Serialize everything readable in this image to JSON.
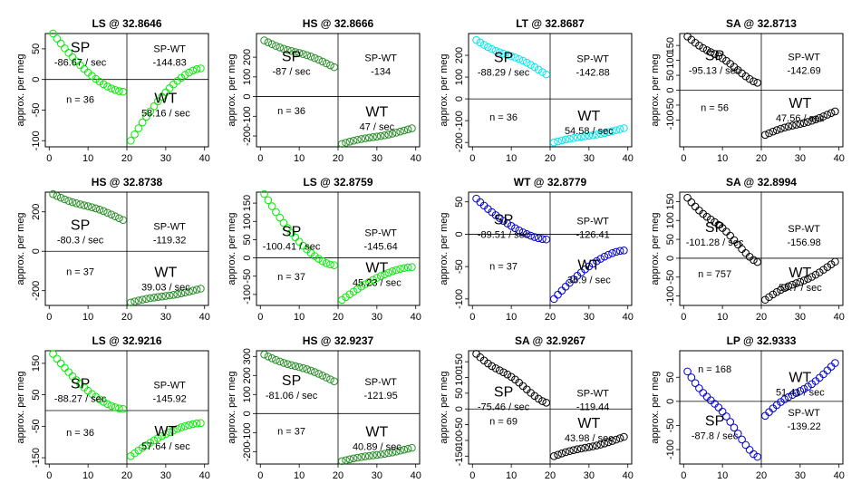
{
  "figure": {
    "ylabel": "approx. per meg",
    "xticks": [
      "0",
      "10",
      "20",
      "30",
      "40"
    ],
    "sp_label": "SP",
    "wt_label": "WT",
    "diff_label": "SP-WT"
  },
  "chart_data": [
    {
      "type": "scatter",
      "title": "LS @ 32.8646",
      "ylim": [
        -110,
        75
      ],
      "yticks": [
        "-100",
        "-50",
        "0",
        "50"
      ],
      "color": "#00ee00",
      "sp": [
        75,
        -20
      ],
      "wt": [
        -100,
        18
      ],
      "sp_rate": "-86.67 / sec",
      "wt_rate": "58.16 / sec",
      "diff": "-144.83",
      "n": "n = 36",
      "sp_pos": [
        8,
        45
      ],
      "wt_pos": [
        30,
        -38
      ],
      "n_pos": [
        8,
        -38
      ],
      "diff_pos": [
        31,
        45
      ],
      "shape": "bowl"
    },
    {
      "type": "scatter",
      "title": "HS @ 32.8666",
      "ylim": [
        -255,
        320
      ],
      "yticks": [
        "-200",
        "-100",
        "0",
        "100",
        "200"
      ],
      "color": "#228b22",
      "sp": [
        285,
        130
      ],
      "wt": [
        -240,
        -150
      ],
      "sp_rate": "-87 / sec",
      "wt_rate": "47 / sec",
      "diff": "-134",
      "n": "n = 36",
      "sp_pos": [
        8,
        180
      ],
      "wt_pos": [
        30,
        -100
      ],
      "n_pos": [
        8,
        -90
      ],
      "diff_pos": [
        31,
        180
      ],
      "shape": "gentle"
    },
    {
      "type": "scatter",
      "title": "LT @ 32.8687",
      "ylim": [
        -220,
        300
      ],
      "yticks": [
        "-200",
        "-100",
        "0",
        "100",
        "200"
      ],
      "color": "#00e5ee",
      "sp": [
        270,
        90
      ],
      "wt": [
        -200,
        -125
      ],
      "sp_rate": "-88.29 / sec",
      "wt_rate": "54.58 / sec",
      "diff": "-142.88",
      "n": "n = 36",
      "sp_pos": [
        8,
        170
      ],
      "wt_pos": [
        30,
        -100
      ],
      "n_pos": [
        8,
        -100
      ],
      "diff_pos": [
        31,
        170
      ],
      "shape": "gentle"
    },
    {
      "type": "scatter",
      "title": "SA @ 32.8713",
      "ylim": [
        -190,
        190
      ],
      "yticks": [
        "-100",
        "-50",
        "0",
        "50",
        "100",
        "150"
      ],
      "color": "#000000",
      "sp": [
        180,
        25
      ],
      "wt": [
        -150,
        -60
      ],
      "sp_rate": "-95.13 / sec",
      "wt_rate": "47.56 / sec",
      "diff": "-142.69",
      "n": "n = 56",
      "sp_pos": [
        8,
        100
      ],
      "wt_pos": [
        30,
        -60
      ],
      "n_pos": [
        8,
        -70
      ],
      "diff_pos": [
        31,
        100
      ],
      "shape": "linear"
    },
    {
      "type": "scatter",
      "title": "HS @ 32.8738",
      "ylim": [
        -275,
        300
      ],
      "yticks": [
        "-200",
        "0",
        "200"
      ],
      "color": "#228b22",
      "sp": [
        290,
        140
      ],
      "wt": [
        -260,
        -180
      ],
      "sp_rate": "-80.3 / sec",
      "wt_rate": "39.03 / sec",
      "diff": "-119.32",
      "n": "n = 37",
      "sp_pos": [
        8,
        110
      ],
      "wt_pos": [
        30,
        -130
      ],
      "n_pos": [
        8,
        -120
      ],
      "diff_pos": [
        31,
        110
      ],
      "shape": "gentle"
    },
    {
      "type": "scatter",
      "title": "LS @ 32.8759",
      "ylim": [
        -130,
        180
      ],
      "yticks": [
        "-100",
        "-50",
        "0",
        "50",
        "100",
        "150"
      ],
      "color": "#00ee00",
      "sp": [
        175,
        -20
      ],
      "wt": [
        -115,
        -25
      ],
      "sp_rate": "-100.41 / sec",
      "wt_rate": "45.23 / sec",
      "diff": "-145.64",
      "n": "n = 37",
      "sp_pos": [
        8,
        60
      ],
      "wt_pos": [
        30,
        -40
      ],
      "n_pos": [
        8,
        -60
      ],
      "diff_pos": [
        31,
        60
      ],
      "shape": "bowl"
    },
    {
      "type": "scatter",
      "title": "WT @ 32.8779",
      "ylim": [
        -110,
        65
      ],
      "yticks": [
        "-100",
        "-50",
        "0",
        "50"
      ],
      "color": "#0000cd",
      "sp": [
        55,
        -8
      ],
      "wt": [
        -100,
        -25
      ],
      "sp_rate": "-89.51 / sec",
      "wt_rate": "36.9 / sec",
      "diff": "-126.41",
      "n": "n = 37",
      "sp_pos": [
        8,
        15
      ],
      "wt_pos": [
        30,
        -55
      ],
      "n_pos": [
        8,
        -55
      ],
      "diff_pos": [
        31,
        15
      ],
      "shape": "bowl"
    },
    {
      "type": "scatter",
      "title": "SA @ 32.8994",
      "ylim": [
        -125,
        175
      ],
      "yticks": [
        "-100",
        "-50",
        "0",
        "50",
        "100",
        "150"
      ],
      "color": "#000000",
      "sp": [
        160,
        -10
      ],
      "wt": [
        -110,
        5
      ],
      "sp_rate": "-101.28 / sec",
      "wt_rate": "55.7 / sec",
      "diff": "-156.98",
      "n": "n = 757",
      "sp_pos": [
        8,
        70
      ],
      "wt_pos": [
        30,
        -50
      ],
      "n_pos": [
        8,
        -50
      ],
      "diff_pos": [
        31,
        70
      ],
      "shape": "linear"
    },
    {
      "type": "scatter",
      "title": "LS @ 32.9216",
      "ylim": [
        -170,
        190
      ],
      "yticks": [
        "-150",
        "-50",
        "50",
        "150"
      ],
      "color": "#00ee00",
      "sp": [
        180,
        5
      ],
      "wt": [
        -145,
        -40
      ],
      "sp_rate": "-88.27 / sec",
      "wt_rate": "57.64 / sec",
      "diff": "-145.92",
      "n": "n = 36",
      "sp_pos": [
        8,
        70
      ],
      "wt_pos": [
        30,
        -80
      ],
      "n_pos": [
        8,
        -80
      ],
      "diff_pos": [
        31,
        70
      ],
      "shape": "bowl"
    },
    {
      "type": "scatter",
      "title": "HS @ 32.9237",
      "ylim": [
        -265,
        330
      ],
      "yticks": [
        "-200",
        "-100",
        "0",
        "100",
        "200",
        "300"
      ],
      "color": "#228b22",
      "sp": [
        310,
        150
      ],
      "wt": [
        -250,
        -170
      ],
      "sp_rate": "-81.06 / sec",
      "wt_rate": "40.89 / sec",
      "diff": "-121.95",
      "n": "n = 37",
      "sp_pos": [
        8,
        150
      ],
      "wt_pos": [
        30,
        -120
      ],
      "n_pos": [
        8,
        -110
      ],
      "diff_pos": [
        31,
        150
      ],
      "shape": "gentle"
    },
    {
      "type": "scatter",
      "title": "SA @ 32.9267",
      "ylim": [
        -175,
        185
      ],
      "yticks": [
        "-150",
        "-100",
        "-50",
        "0",
        "50",
        "100",
        "150"
      ],
      "color": "#000000",
      "sp": [
        175,
        20
      ],
      "wt": [
        -150,
        -80
      ],
      "sp_rate": "-75.46 / sec",
      "wt_rate": "43.98 / sec",
      "diff": "-119.44",
      "n": "n = 69",
      "sp_pos": [
        8,
        40
      ],
      "wt_pos": [
        30,
        -60
      ],
      "n_pos": [
        8,
        -50
      ],
      "diff_pos": [
        31,
        40
      ],
      "shape": "linear"
    },
    {
      "type": "scatter",
      "title": "LP @ 32.9333",
      "ylim": [
        -130,
        105
      ],
      "yticks": [
        "-100",
        "-50",
        "0",
        "50"
      ],
      "color": "#0000cd",
      "sp": [
        62,
        -115
      ],
      "wt": [
        -30,
        95
      ],
      "sp_rate": "-87.8 / sec",
      "wt_rate": "51.41 / sec",
      "diff": "-139.22",
      "n": "n = 168",
      "sp_pos": [
        8,
        -50
      ],
      "wt_pos": [
        30,
        40
      ],
      "n_pos": [
        8,
        60
      ],
      "diff_pos": [
        31,
        -30
      ],
      "shape": "linear"
    }
  ]
}
